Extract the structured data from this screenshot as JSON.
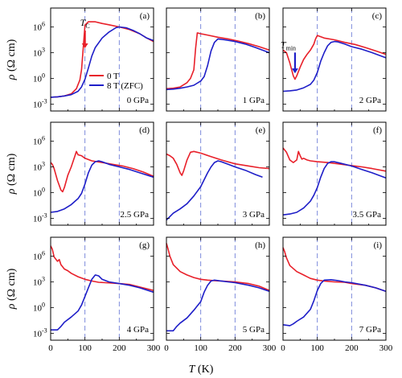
{
  "chart_data": {
    "type": "line",
    "layout": "3x3 grid of panels, shared axes",
    "xlabel_parts": [
      "T",
      " (K)"
    ],
    "ylabel_parts": [
      "ρ",
      " (Ω cm)"
    ],
    "x_ticks": [
      0,
      100,
      200,
      300
    ],
    "xlim": [
      0,
      300
    ],
    "y_scale": "log10",
    "y_ticks": [
      {
        "exp": -3,
        "label": "10",
        "sup": "-3"
      },
      {
        "exp": 0,
        "label": "10",
        "sup": "0"
      },
      {
        "exp": 3,
        "label": "10",
        "sup": "3"
      },
      {
        "exp": 6,
        "label": "10",
        "sup": "6"
      }
    ],
    "ylim_exp": [
      -3.8,
      8.2
    ],
    "dashed_reference_lines_x": [
      100,
      200
    ],
    "colors": {
      "zero_field": "#e8202a",
      "field_8T": "#1e1ec8",
      "dashed": "#6f7fd8"
    },
    "legend": {
      "location": "panel (a), center-right",
      "entries": [
        {
          "name": "0 T",
          "color": "#e8202a"
        },
        {
          "name": "8 T (ZFC)",
          "color": "#1e1ec8"
        }
      ]
    },
    "annotations": [
      {
        "panel": 0,
        "text": "T",
        "sub": "C",
        "at_x": 100,
        "arrow": "down"
      },
      {
        "panel": 2,
        "text": "T",
        "sub": "min",
        "at_x": 35,
        "arrow": "down"
      }
    ],
    "panels": [
      {
        "letter": "(a)",
        "pressure": "0 GPa",
        "series": [
          {
            "key": "0T",
            "x": [
              0,
              20,
              40,
              60,
              75,
              85,
              90,
              95,
              100,
              110,
              130,
              150,
              170,
              200,
              230,
              260,
              280,
              300
            ],
            "log10_y": [
              -2.2,
              -2.15,
              -2.05,
              -1.8,
              -1.2,
              -0.2,
              1,
              3.5,
              6.2,
              6.6,
              6.6,
              6.4,
              6.25,
              6.0,
              5.7,
              5.2,
              4.7,
              4.3
            ]
          },
          {
            "key": "8T",
            "x": [
              0,
              20,
              40,
              60,
              80,
              90,
              100,
              110,
              120,
              130,
              150,
              170,
              190,
              200,
              220,
              240,
              260,
              280,
              300
            ],
            "log10_y": [
              -2.2,
              -2.15,
              -2.05,
              -1.9,
              -1.5,
              -1.0,
              -0.1,
              1.2,
              2.6,
              3.6,
              4.7,
              5.4,
              5.9,
              6.0,
              5.9,
              5.6,
              5.2,
              4.7,
              4.4
            ]
          }
        ]
      },
      {
        "letter": "(b)",
        "pressure": "1 GPa",
        "series": [
          {
            "key": "0T",
            "x": [
              0,
              20,
              40,
              60,
              70,
              80,
              85,
              90,
              100,
              120,
              150,
              180,
              210,
              240,
              270,
              300
            ],
            "log10_y": [
              -1.2,
              -1.15,
              -1.0,
              -0.5,
              0,
              1,
              3.5,
              5.3,
              5.2,
              5.05,
              4.8,
              4.6,
              4.35,
              4.05,
              3.7,
              3.3
            ]
          },
          {
            "key": "8T",
            "x": [
              0,
              20,
              40,
              60,
              80,
              100,
              110,
              120,
              130,
              140,
              150,
              170,
              200,
              230,
              260,
              300
            ],
            "log10_y": [
              -1.3,
              -1.25,
              -1.15,
              -1.0,
              -0.8,
              -0.3,
              0.2,
              1.5,
              3.2,
              4.2,
              4.6,
              4.5,
              4.3,
              4.0,
              3.6,
              3.0
            ]
          }
        ]
      },
      {
        "letter": "(c)",
        "pressure": "2 GPa",
        "series": [
          {
            "key": "0T",
            "x": [
              0,
              10,
              20,
              30,
              35,
              40,
              50,
              60,
              70,
              80,
              90,
              95,
              100,
              120,
              150,
              180,
              210,
              240,
              270,
              300
            ],
            "log10_y": [
              3.3,
              3.0,
              1.8,
              0.3,
              -0.1,
              0.3,
              1.3,
              2.2,
              2.8,
              3.3,
              4.0,
              4.6,
              5.0,
              4.7,
              4.5,
              4.2,
              3.95,
              3.6,
              3.2,
              2.8
            ]
          },
          {
            "key": "8T",
            "x": [
              0,
              20,
              40,
              60,
              80,
              90,
              100,
              110,
              120,
              130,
              140,
              150,
              160,
              180,
              200,
              230,
              260,
              300
            ],
            "log10_y": [
              -1.5,
              -1.45,
              -1.35,
              -1.1,
              -0.7,
              -0.2,
              0.7,
              2.0,
              3.0,
              3.8,
              4.2,
              4.3,
              4.25,
              4.0,
              3.7,
              3.4,
              3.0,
              2.4
            ]
          }
        ]
      },
      {
        "letter": "(d)",
        "pressure": "2.5 GPa",
        "series": [
          {
            "key": "0T",
            "x": [
              0,
              5,
              10,
              20,
              30,
              35,
              40,
              50,
              60,
              70,
              75,
              80,
              90,
              100,
              120,
              150,
              180,
              210,
              240,
              270,
              300
            ],
            "log10_y": [
              3.5,
              3.3,
              2.8,
              1.4,
              0.3,
              0.1,
              0.6,
              2.0,
              3.0,
              4.2,
              4.8,
              4.4,
              4.3,
              4.0,
              3.7,
              3.5,
              3.3,
              3.1,
              2.8,
              2.4,
              1.9
            ]
          },
          {
            "key": "8T",
            "x": [
              0,
              20,
              40,
              60,
              80,
              90,
              100,
              110,
              120,
              130,
              140,
              150,
              170,
              200,
              230,
              260,
              300
            ],
            "log10_y": [
              -2.3,
              -2.2,
              -1.9,
              -1.4,
              -0.7,
              -0.1,
              1.0,
              2.3,
              3.2,
              3.6,
              3.7,
              3.6,
              3.3,
              3.0,
              2.7,
              2.3,
              1.8
            ]
          }
        ]
      },
      {
        "letter": "(e)",
        "pressure": "3 GPa",
        "series": [
          {
            "key": "0T",
            "x": [
              0,
              10,
              20,
              30,
              40,
              45,
              50,
              60,
              70,
              80,
              100,
              130,
              160,
              200,
              240,
              270,
              300
            ],
            "log10_y": [
              4.5,
              4.3,
              4.0,
              3.3,
              2.3,
              2.0,
              2.5,
              3.8,
              4.7,
              4.8,
              4.6,
              4.2,
              3.8,
              3.35,
              3.1,
              2.9,
              2.8
            ]
          },
          {
            "key": "8T",
            "x": [
              0,
              10,
              20,
              40,
              60,
              80,
              100,
              110,
              120,
              130,
              140,
              150,
              160,
              180,
              200,
              230,
              260,
              280
            ],
            "log10_y": [
              -3.2,
              -2.8,
              -2.4,
              -1.9,
              -1.3,
              -0.4,
              0.7,
              1.5,
              2.3,
              3.0,
              3.5,
              3.7,
              3.6,
              3.3,
              3.0,
              2.6,
              2.1,
              1.8
            ]
          }
        ]
      },
      {
        "letter": "(f)",
        "pressure": "3.5 GPa",
        "series": [
          {
            "key": "0T",
            "x": [
              0,
              10,
              20,
              30,
              40,
              45,
              50,
              55,
              60,
              70,
              80,
              100,
              130,
              160,
              200,
              230,
              260,
              300
            ],
            "log10_y": [
              5.2,
              4.7,
              3.8,
              3.5,
              3.8,
              4.8,
              4.3,
              3.9,
              4.0,
              3.8,
              3.7,
              3.6,
              3.5,
              3.35,
              3.15,
              3.0,
              2.8,
              2.5
            ]
          },
          {
            "key": "8T",
            "x": [
              0,
              20,
              40,
              60,
              80,
              90,
              100,
              110,
              120,
              130,
              140,
              150,
              170,
              200,
              230,
              260,
              300
            ],
            "log10_y": [
              -2.6,
              -2.5,
              -2.3,
              -1.8,
              -1.0,
              -0.3,
              0.6,
              1.8,
              2.8,
              3.4,
              3.6,
              3.6,
              3.4,
              3.1,
              2.7,
              2.3,
              1.7
            ]
          }
        ]
      },
      {
        "letter": "(g)",
        "pressure": "4 GPa",
        "series": [
          {
            "key": "0T",
            "x": [
              0,
              5,
              10,
              20,
              25,
              30,
              40,
              50,
              60,
              80,
              100,
              120,
              140,
              160,
              200,
              230,
              260,
              300
            ],
            "log10_y": [
              7.2,
              6.8,
              5.9,
              5.4,
              5.6,
              5.0,
              4.5,
              4.3,
              4.0,
              3.6,
              3.3,
              3.1,
              2.95,
              2.9,
              2.8,
              2.7,
              2.4,
              2.0
            ]
          },
          {
            "key": "8T",
            "x": [
              0,
              10,
              20,
              30,
              40,
              60,
              80,
              90,
              100,
              110,
              120,
              130,
              140,
              150,
              170,
              200,
              230,
              260,
              300
            ],
            "log10_y": [
              -2.6,
              -2.6,
              -2.6,
              -2.2,
              -1.7,
              -1.1,
              -0.4,
              0.3,
              1.3,
              2.3,
              3.3,
              3.8,
              3.7,
              3.3,
              3.0,
              2.8,
              2.6,
              2.3,
              1.8
            ]
          }
        ]
      },
      {
        "letter": "(h)",
        "pressure": "5 GPa",
        "series": [
          {
            "key": "0T",
            "x": [
              0,
              5,
              10,
              20,
              40,
              60,
              80,
              100,
              120,
              140,
              160,
              200,
              240,
              270,
              300
            ],
            "log10_y": [
              7.5,
              6.8,
              6.0,
              5.0,
              4.2,
              3.8,
              3.5,
              3.3,
              3.2,
              3.15,
              3.1,
              3.0,
              2.8,
              2.5,
              2.0
            ]
          },
          {
            "key": "8T",
            "x": [
              0,
              20,
              30,
              40,
              60,
              80,
              100,
              110,
              120,
              130,
              140,
              160,
              180,
              200,
              240,
              270,
              300
            ],
            "log10_y": [
              -2.7,
              -2.7,
              -2.2,
              -1.8,
              -1.2,
              -0.3,
              0.7,
              1.8,
              2.6,
              3.1,
              3.2,
              3.1,
              3.0,
              2.9,
              2.6,
              2.3,
              1.9
            ]
          }
        ]
      },
      {
        "letter": "(i)",
        "pressure": "7 GPa",
        "series": [
          {
            "key": "0T",
            "x": [
              0,
              5,
              10,
              20,
              40,
              60,
              80,
              100,
              120,
              150,
              180,
              200,
              240,
              270,
              300
            ],
            "log10_y": [
              7.0,
              6.5,
              5.8,
              4.9,
              4.2,
              3.8,
              3.4,
              3.2,
              3.1,
              3.0,
              2.95,
              2.8,
              2.6,
              2.3,
              1.9
            ]
          },
          {
            "key": "8T",
            "x": [
              0,
              20,
              30,
              40,
              60,
              80,
              90,
              100,
              110,
              120,
              140,
              160,
              180,
              200,
              240,
              270,
              300
            ],
            "log10_y": [
              -2.0,
              -2.1,
              -1.9,
              -1.6,
              -1.1,
              -0.2,
              0.8,
              2.0,
              2.8,
              3.2,
              3.25,
              3.15,
              3.0,
              2.9,
              2.6,
              2.3,
              1.9
            ]
          }
        ]
      }
    ]
  }
}
